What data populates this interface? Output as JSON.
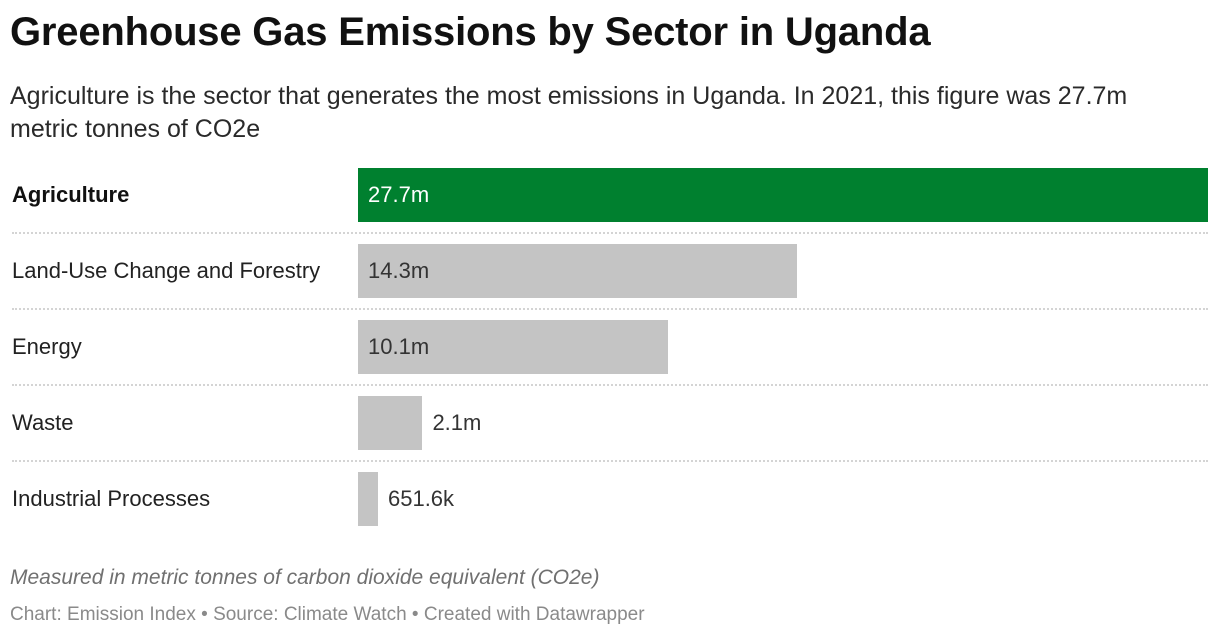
{
  "header": {
    "title": "Greenhouse Gas Emissions by Sector in Uganda",
    "subtitle": "Agriculture is the sector that generates the most emissions in Uganda. In 2021, this figure was 27.7m metric tonnes of CO2e"
  },
  "chart_data": {
    "type": "bar",
    "orientation": "horizontal",
    "title": "Greenhouse Gas Emissions by Sector in Uganda",
    "subtitle": "Agriculture is the sector that generates the most emissions in Uganda. In 2021, this figure was 27.7m metric tonnes of CO2e",
    "categories": [
      "Agriculture",
      "Land-Use Change and Forestry",
      "Energy",
      "Waste",
      "Industrial Processes"
    ],
    "values": [
      27700000,
      14300000,
      10100000,
      2100000,
      651600
    ],
    "value_labels": [
      "27.7m",
      "14.3m",
      "10.1m",
      "2.1m",
      "651.6k"
    ],
    "highlight_index": 0,
    "colors": {
      "highlight": "#00802f",
      "default": "#c4c4c4",
      "label_on_highlight": "#ffffff",
      "label_default": "#333333"
    },
    "xlim": [
      0,
      27700000
    ],
    "grid": false,
    "legend": "none"
  },
  "notes": {
    "measure": "Measured in metric tonnes of carbon dioxide equivalent (CO2e)",
    "credit": "Chart: Emission Index • Source: Climate Watch • Created with Datawrapper"
  }
}
